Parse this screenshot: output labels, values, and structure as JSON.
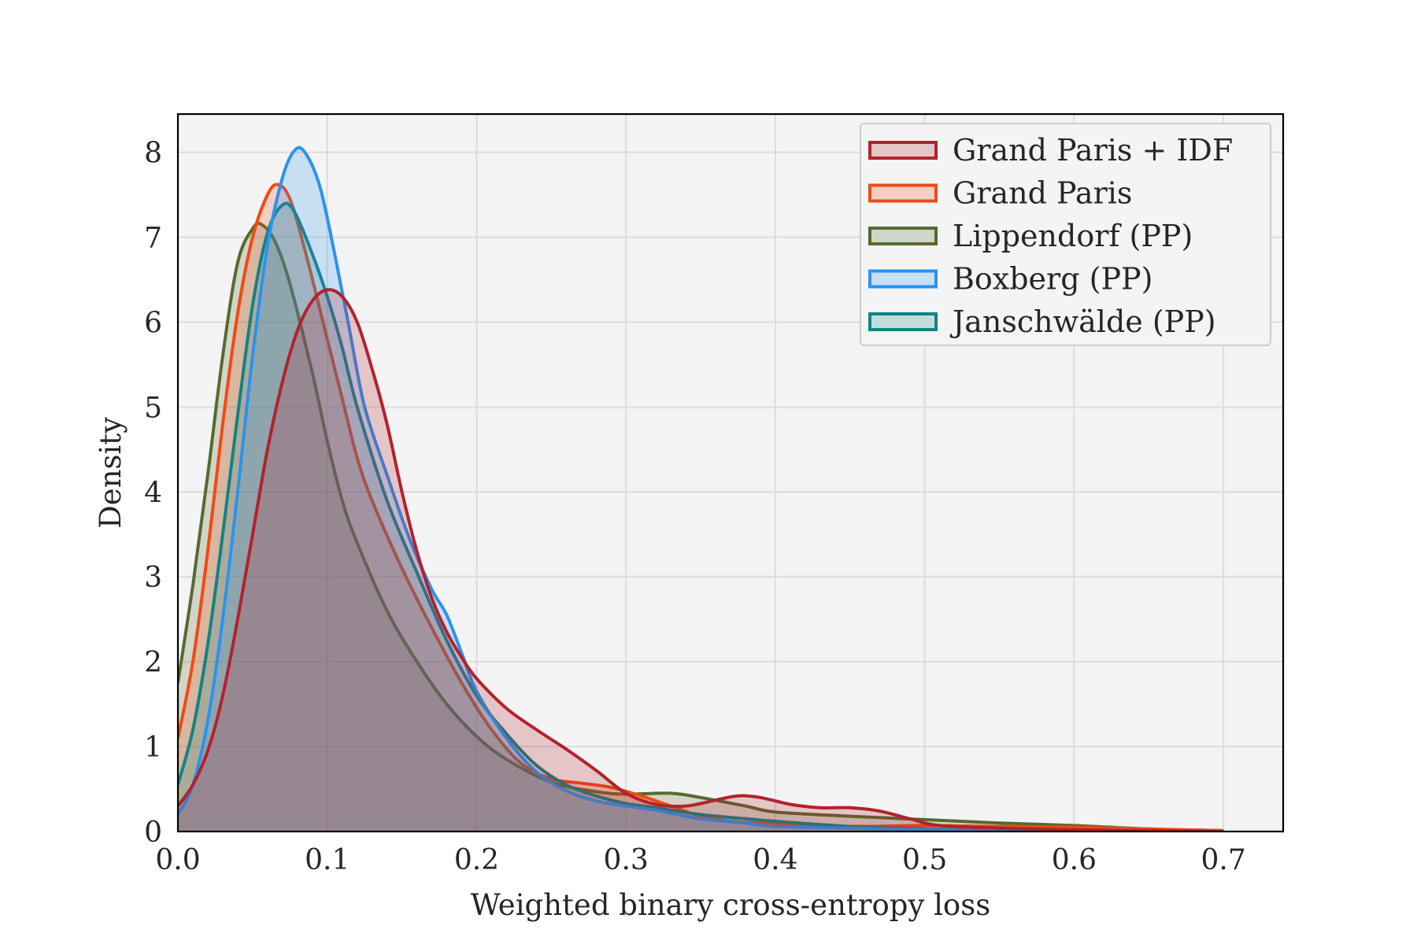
{
  "chart_data": {
    "type": "area",
    "title": "",
    "xlabel": "Weighted binary cross-entropy loss",
    "ylabel": "Density",
    "xlim": [
      0.0,
      0.74
    ],
    "ylim": [
      0,
      8.45
    ],
    "xticks": [
      0.0,
      0.1,
      0.2,
      0.3,
      0.4,
      0.5,
      0.6,
      0.7
    ],
    "xtick_labels": [
      "0.0",
      "0.1",
      "0.2",
      "0.3",
      "0.4",
      "0.5",
      "0.6",
      "0.7"
    ],
    "yticks": [
      0,
      1,
      2,
      3,
      4,
      5,
      6,
      7,
      8
    ],
    "ytick_labels": [
      "0",
      "1",
      "2",
      "3",
      "4",
      "5",
      "6",
      "7",
      "8"
    ],
    "grid": true,
    "legend_position": "top-right",
    "background": "#f4f4f4",
    "series": [
      {
        "name": "Lippendorf (PP)",
        "color": "#556b2f",
        "points": [
          [
            0.0,
            1.75
          ],
          [
            0.01,
            2.9
          ],
          [
            0.02,
            4.2
          ],
          [
            0.03,
            5.6
          ],
          [
            0.04,
            6.7
          ],
          [
            0.05,
            7.1
          ],
          [
            0.056,
            7.15
          ],
          [
            0.065,
            6.95
          ],
          [
            0.075,
            6.45
          ],
          [
            0.09,
            5.4
          ],
          [
            0.1,
            4.6
          ],
          [
            0.11,
            3.9
          ],
          [
            0.12,
            3.4
          ],
          [
            0.14,
            2.6
          ],
          [
            0.16,
            2.0
          ],
          [
            0.18,
            1.5
          ],
          [
            0.2,
            1.12
          ],
          [
            0.22,
            0.85
          ],
          [
            0.25,
            0.58
          ],
          [
            0.28,
            0.47
          ],
          [
            0.3,
            0.44
          ],
          [
            0.33,
            0.45
          ],
          [
            0.35,
            0.4
          ],
          [
            0.38,
            0.3
          ],
          [
            0.4,
            0.23
          ],
          [
            0.45,
            0.18
          ],
          [
            0.5,
            0.14
          ],
          [
            0.55,
            0.1
          ],
          [
            0.6,
            0.07
          ],
          [
            0.65,
            0.03
          ],
          [
            0.7,
            0.01
          ]
        ]
      },
      {
        "name": "Grand Paris",
        "color": "#f04a12",
        "points": [
          [
            0.0,
            1.1
          ],
          [
            0.01,
            2.0
          ],
          [
            0.02,
            3.3
          ],
          [
            0.03,
            4.8
          ],
          [
            0.04,
            6.1
          ],
          [
            0.05,
            7.0
          ],
          [
            0.06,
            7.5
          ],
          [
            0.067,
            7.62
          ],
          [
            0.075,
            7.45
          ],
          [
            0.085,
            6.85
          ],
          [
            0.1,
            5.8
          ],
          [
            0.11,
            5.1
          ],
          [
            0.12,
            4.4
          ],
          [
            0.13,
            3.9
          ],
          [
            0.15,
            3.1
          ],
          [
            0.17,
            2.4
          ],
          [
            0.19,
            1.75
          ],
          [
            0.21,
            1.2
          ],
          [
            0.23,
            0.8
          ],
          [
            0.25,
            0.62
          ],
          [
            0.27,
            0.57
          ],
          [
            0.29,
            0.52
          ],
          [
            0.31,
            0.42
          ],
          [
            0.33,
            0.3
          ],
          [
            0.35,
            0.18
          ],
          [
            0.37,
            0.12
          ],
          [
            0.4,
            0.09
          ],
          [
            0.45,
            0.06
          ],
          [
            0.5,
            0.07
          ],
          [
            0.55,
            0.06
          ],
          [
            0.6,
            0.05
          ],
          [
            0.65,
            0.03
          ],
          [
            0.7,
            0.01
          ]
        ]
      },
      {
        "name": "Janschwälde (PP)",
        "color": "#138285",
        "points": [
          [
            0.0,
            0.55
          ],
          [
            0.01,
            1.2
          ],
          [
            0.02,
            2.2
          ],
          [
            0.03,
            3.5
          ],
          [
            0.04,
            4.9
          ],
          [
            0.05,
            6.2
          ],
          [
            0.06,
            7.05
          ],
          [
            0.07,
            7.38
          ],
          [
            0.078,
            7.3
          ],
          [
            0.09,
            6.8
          ],
          [
            0.1,
            6.3
          ],
          [
            0.11,
            5.7
          ],
          [
            0.12,
            5.0
          ],
          [
            0.14,
            3.9
          ],
          [
            0.16,
            3.05
          ],
          [
            0.18,
            2.25
          ],
          [
            0.2,
            1.6
          ],
          [
            0.22,
            1.15
          ],
          [
            0.24,
            0.78
          ],
          [
            0.26,
            0.55
          ],
          [
            0.28,
            0.42
          ],
          [
            0.3,
            0.33
          ],
          [
            0.32,
            0.28
          ],
          [
            0.35,
            0.2
          ],
          [
            0.38,
            0.15
          ],
          [
            0.4,
            0.12
          ],
          [
            0.45,
            0.06
          ],
          [
            0.5,
            0.03
          ],
          [
            0.55,
            0.02
          ],
          [
            0.6,
            0.01
          ],
          [
            0.7,
            0.0
          ]
        ]
      },
      {
        "name": "Boxberg (PP)",
        "color": "#2a93f0",
        "points": [
          [
            0.0,
            0.2
          ],
          [
            0.01,
            0.55
          ],
          [
            0.02,
            1.3
          ],
          [
            0.03,
            2.5
          ],
          [
            0.04,
            4.0
          ],
          [
            0.05,
            5.6
          ],
          [
            0.06,
            6.9
          ],
          [
            0.07,
            7.7
          ],
          [
            0.078,
            8.02
          ],
          [
            0.085,
            8.0
          ],
          [
            0.095,
            7.6
          ],
          [
            0.105,
            6.8
          ],
          [
            0.115,
            5.9
          ],
          [
            0.125,
            5.0
          ],
          [
            0.14,
            4.2
          ],
          [
            0.155,
            3.45
          ],
          [
            0.17,
            2.85
          ],
          [
            0.18,
            2.55
          ],
          [
            0.19,
            2.1
          ],
          [
            0.2,
            1.65
          ],
          [
            0.22,
            1.1
          ],
          [
            0.24,
            0.7
          ],
          [
            0.26,
            0.48
          ],
          [
            0.28,
            0.36
          ],
          [
            0.3,
            0.3
          ],
          [
            0.32,
            0.25
          ],
          [
            0.35,
            0.15
          ],
          [
            0.38,
            0.1
          ],
          [
            0.4,
            0.06
          ],
          [
            0.45,
            0.04
          ],
          [
            0.5,
            0.02
          ],
          [
            0.6,
            0.0
          ],
          [
            0.7,
            0.0
          ]
        ]
      },
      {
        "name": "Grand Paris + IDF",
        "color": "#b2222c",
        "points": [
          [
            0.0,
            0.3
          ],
          [
            0.01,
            0.55
          ],
          [
            0.02,
            0.95
          ],
          [
            0.03,
            1.6
          ],
          [
            0.04,
            2.5
          ],
          [
            0.05,
            3.5
          ],
          [
            0.06,
            4.5
          ],
          [
            0.07,
            5.3
          ],
          [
            0.08,
            5.9
          ],
          [
            0.09,
            6.25
          ],
          [
            0.1,
            6.38
          ],
          [
            0.11,
            6.3
          ],
          [
            0.12,
            6.0
          ],
          [
            0.13,
            5.45
          ],
          [
            0.14,
            4.8
          ],
          [
            0.15,
            4.0
          ],
          [
            0.16,
            3.3
          ],
          [
            0.17,
            2.75
          ],
          [
            0.18,
            2.35
          ],
          [
            0.19,
            2.05
          ],
          [
            0.2,
            1.8
          ],
          [
            0.22,
            1.45
          ],
          [
            0.24,
            1.2
          ],
          [
            0.26,
            0.97
          ],
          [
            0.28,
            0.72
          ],
          [
            0.3,
            0.45
          ],
          [
            0.32,
            0.32
          ],
          [
            0.34,
            0.3
          ],
          [
            0.36,
            0.37
          ],
          [
            0.375,
            0.42
          ],
          [
            0.39,
            0.4
          ],
          [
            0.41,
            0.32
          ],
          [
            0.43,
            0.28
          ],
          [
            0.45,
            0.28
          ],
          [
            0.47,
            0.24
          ],
          [
            0.49,
            0.15
          ],
          [
            0.51,
            0.07
          ],
          [
            0.55,
            0.04
          ],
          [
            0.6,
            0.02
          ],
          [
            0.65,
            0.01
          ],
          [
            0.7,
            0.0
          ]
        ]
      }
    ],
    "legend_entries": [
      "Grand Paris + IDF",
      "Grand Paris",
      "Lippendorf (PP)",
      "Boxberg (PP)",
      "Janschwälde (PP)"
    ]
  }
}
